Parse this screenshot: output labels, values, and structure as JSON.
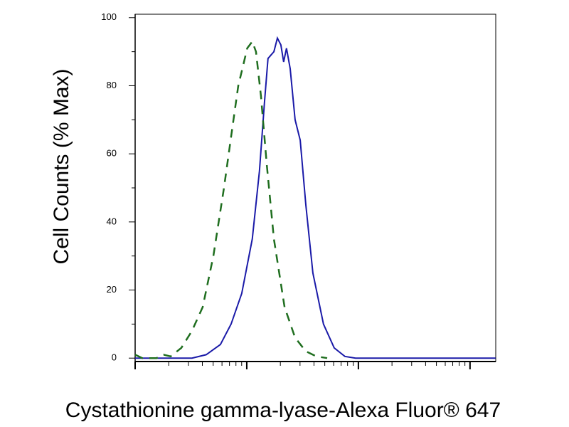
{
  "chart_data": {
    "type": "line",
    "y_label": "Cell Counts (% Max)",
    "x_label": "Cystathionine gamma-lyase-Alexa Fluor® 647",
    "log_x": true,
    "xlim": [
      1,
      1700
    ],
    "xticks": [
      1,
      10,
      100,
      1000
    ],
    "xminorticks": [
      2,
      3,
      4,
      5,
      6,
      7,
      8,
      9,
      20,
      30,
      40,
      50,
      60,
      70,
      80,
      90,
      200,
      300,
      400,
      500,
      600,
      700,
      800,
      900
    ],
    "ylim": [
      -1,
      101
    ],
    "yticks": [
      0,
      20,
      40,
      60,
      80,
      100
    ],
    "yminorticks": [
      10,
      30,
      50,
      70,
      90
    ],
    "series": [
      {
        "color": "#1a1aa8",
        "dash": false,
        "x": [
          1,
          3.23,
          4.33,
          5.81,
          7.24,
          9.02,
          11.2,
          13.0,
          14.4,
          15.5,
          17.5,
          18.8,
          20.2,
          21.4,
          22.7,
          24.5,
          27.1,
          30.1,
          33.8,
          39.1,
          48.7,
          60.7,
          75.7,
          94.3,
          1695
        ],
        "values": [
          0,
          0,
          1,
          4,
          10,
          19,
          35,
          55,
          75,
          88,
          90,
          94,
          92,
          87,
          91,
          85,
          70,
          64,
          45,
          25,
          10,
          3,
          0.5,
          0,
          0
        ]
      },
      {
        "color": "#1f6e1f",
        "dash": true,
        "x": [
          1,
          1.16,
          1.55,
          1.8,
          2.08,
          2.59,
          3.23,
          4.03,
          5.02,
          6.25,
          7.24,
          8.39,
          9.29,
          10.1,
          11.2,
          12.1,
          13.4,
          15.1,
          17.5,
          21.8,
          27.1,
          33.8,
          42.1,
          52.5
        ],
        "values": [
          1,
          0,
          0,
          1,
          0.5,
          3,
          8,
          15,
          30,
          50,
          65,
          80,
          86,
          91,
          93,
          90,
          77,
          57,
          35,
          15,
          6,
          2,
          0.5,
          0
        ]
      }
    ]
  }
}
